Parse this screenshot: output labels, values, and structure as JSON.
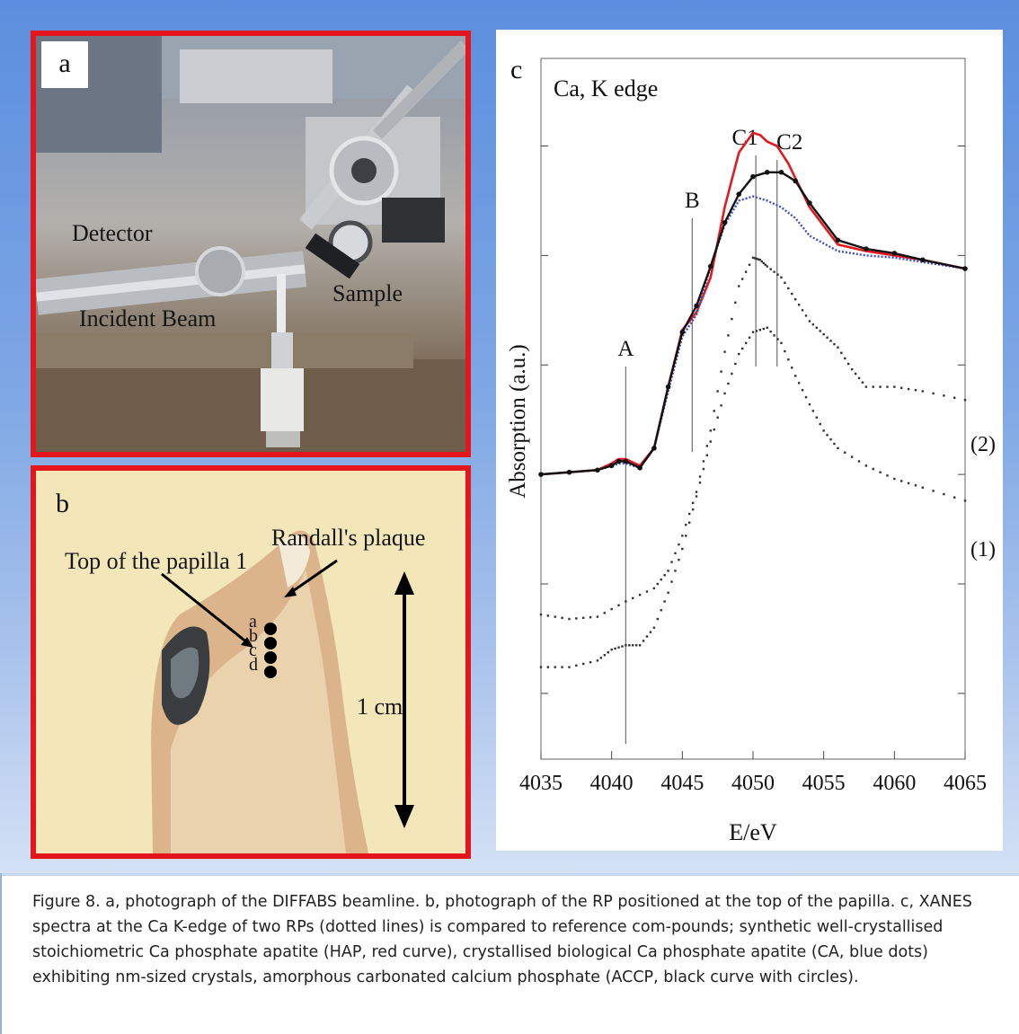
{
  "panel_a": {
    "letter": "a",
    "labels": {
      "detector": "Detector",
      "sample": "Sample",
      "incident_beam": "Incident Beam"
    }
  },
  "panel_b": {
    "letter": "b",
    "labels": {
      "top_of_papilla": "Top of the papilla 1",
      "randalls_plaque": "Randall's plaque",
      "scale": "1 cm"
    },
    "spot_letters": [
      "a",
      "b",
      "c",
      "d"
    ]
  },
  "panel_c": {
    "letter": "c"
  },
  "chart_data": {
    "type": "line",
    "title": "Ca, K edge",
    "xlabel": "E/eV",
    "ylabel": "Absorption (a.u.)",
    "xlim": [
      4035,
      4065
    ],
    "x_ticks": [
      4035,
      4040,
      4045,
      4050,
      4055,
      4060,
      4065
    ],
    "y_ticks_labeled": false,
    "markers": [
      {
        "label": "A",
        "x": 4041
      },
      {
        "label": "B",
        "x": 4045.7
      },
      {
        "label": "C1",
        "x": 4050.2
      },
      {
        "label": "C2",
        "x": 4051.7
      }
    ],
    "series_colors": {
      "HAP": "#e3191f",
      "CA": "#3b4fc8",
      "ACCP": "#111111",
      "RP": "#333333"
    },
    "series": [
      {
        "name": "",
        "style": "red solid line",
        "x": [
          4035,
          4037,
          4039,
          4040,
          4040.5,
          4041,
          4042,
          4043,
          4044,
          4045,
          4046,
          4047,
          4048,
          4049,
          4050,
          4050.5,
          4051,
          4051.7,
          4052.5,
          4054,
          4056,
          4058,
          4060,
          4062,
          4065
        ],
        "y": [
          0.0,
          0.01,
          0.02,
          0.05,
          0.07,
          0.07,
          0.04,
          0.12,
          0.4,
          0.66,
          0.74,
          0.9,
          1.22,
          1.47,
          1.56,
          1.55,
          1.52,
          1.5,
          1.42,
          1.22,
          1.05,
          1.02,
          1.0,
          0.98,
          0.94
        ]
      },
      {
        "name": "",
        "style": "blue dotted line",
        "x": [
          4035,
          4037,
          4039,
          4040,
          4040.5,
          4041,
          4042,
          4043,
          4044,
          4045,
          4046,
          4047,
          4048,
          4049,
          4050,
          4051,
          4052,
          4053,
          4054,
          4056,
          4058,
          4060,
          4062,
          4065
        ],
        "y": [
          0.0,
          0.01,
          0.02,
          0.04,
          0.05,
          0.05,
          0.03,
          0.12,
          0.38,
          0.63,
          0.73,
          0.95,
          1.14,
          1.25,
          1.27,
          1.25,
          1.22,
          1.17,
          1.09,
          1.02,
          1.0,
          0.99,
          0.97,
          0.94
        ]
      },
      {
        "name": "",
        "style": "black line with circles",
        "x": [
          4035,
          4037,
          4039,
          4040,
          4040.5,
          4041,
          4042,
          4043,
          4044,
          4045,
          4046,
          4047,
          4048,
          4049,
          4050,
          4051,
          4052,
          4053,
          4054,
          4056,
          4058,
          4060,
          4062,
          4065
        ],
        "y": [
          0.0,
          0.01,
          0.02,
          0.04,
          0.06,
          0.06,
          0.03,
          0.12,
          0.4,
          0.65,
          0.77,
          0.95,
          1.15,
          1.28,
          1.36,
          1.38,
          1.38,
          1.34,
          1.24,
          1.07,
          1.03,
          1.01,
          0.98,
          0.94
        ]
      },
      {
        "name": "(2)",
        "style": "dotted",
        "x": [
          4035,
          4037,
          4039,
          4041,
          4043,
          4044,
          4045,
          4046,
          4047,
          4048,
          4049,
          4050,
          4050.5,
          4051,
          4052,
          4053,
          4054,
          4055,
          4056,
          4057,
          4058,
          4060,
          4062,
          4065
        ],
        "y": [
          -0.64,
          -0.66,
          -0.65,
          -0.58,
          -0.52,
          -0.44,
          -0.28,
          -0.08,
          0.2,
          0.56,
          0.86,
          0.99,
          0.98,
          0.95,
          0.9,
          0.8,
          0.7,
          0.64,
          0.58,
          0.48,
          0.4,
          0.4,
          0.38,
          0.34
        ]
      },
      {
        "name": "(1)",
        "style": "dotted",
        "x": [
          4035,
          4037,
          4039,
          4040,
          4041,
          4042,
          4043,
          4044,
          4045,
          4046,
          4047,
          4048,
          4049,
          4050,
          4051,
          4052,
          4053,
          4054,
          4055,
          4056,
          4058,
          4060,
          4062,
          4065
        ],
        "y": [
          -0.88,
          -0.88,
          -0.85,
          -0.8,
          -0.78,
          -0.78,
          -0.7,
          -0.54,
          -0.34,
          -0.1,
          0.15,
          0.37,
          0.55,
          0.65,
          0.67,
          0.6,
          0.45,
          0.32,
          0.2,
          0.12,
          0.04,
          -0.02,
          -0.06,
          -0.12
        ]
      }
    ]
  },
  "caption": "Figure 8. a, photograph of the DIFFABS beamline. b, photograph of the RP positioned at the top of the papilla. c, XANES spectra at the Ca K-edge of two RPs (dotted lines) is compared to reference com-pounds; synthetic well-crystallised stoichiometric Ca phosphate apatite (HAP, red curve), crystallised biological Ca phosphate apatite (CA, blue dots) exhibiting nm-sized crystals, amorphous carbonated calcium phosphate (ACCP, black curve with circles)."
}
